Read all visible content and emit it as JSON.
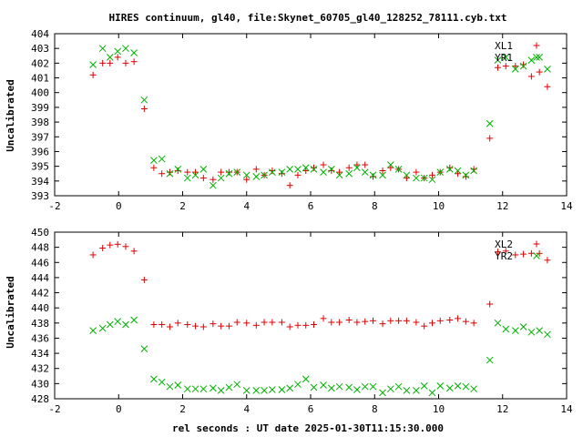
{
  "title": "HIRES continuum, gl40, file:Skynet_60705_gl40_128252_78111.cyb.txt",
  "xlabel": "rel seconds : UT date 2025-01-30T11:15:30.000",
  "colors": {
    "series1": "#e00000",
    "series2": "#00b000"
  },
  "chart_data": [
    {
      "type": "scatter",
      "ylabel": "Uncalibrated",
      "xlim": [
        -2,
        14
      ],
      "ylim": [
        393,
        404
      ],
      "xticks": [
        -2,
        0,
        2,
        4,
        6,
        8,
        10,
        12,
        14
      ],
      "yticks": [
        393,
        394,
        395,
        396,
        397,
        398,
        399,
        400,
        401,
        402,
        403,
        404
      ],
      "legend": "top-right",
      "x": [
        -0.8,
        -0.5,
        -0.27,
        -0.03,
        0.22,
        0.48,
        0.8,
        1.1,
        1.35,
        1.6,
        1.85,
        2.15,
        2.4,
        2.65,
        2.95,
        3.2,
        3.45,
        3.7,
        4.0,
        4.3,
        4.55,
        4.8,
        5.1,
        5.35,
        5.6,
        5.85,
        6.1,
        6.4,
        6.65,
        6.9,
        7.2,
        7.45,
        7.7,
        7.95,
        8.25,
        8.5,
        8.75,
        9.0,
        9.3,
        9.55,
        9.8,
        10.05,
        10.35,
        10.6,
        10.85,
        11.1,
        11.6,
        11.85,
        12.1,
        12.4,
        12.65,
        12.9,
        13.15,
        13.4
      ],
      "series": [
        {
          "name": "XL1",
          "marker": "plus",
          "values": [
            401.2,
            402.0,
            402.0,
            402.4,
            402.0,
            402.1,
            398.9,
            394.9,
            394.5,
            394.6,
            394.7,
            394.6,
            394.6,
            394.2,
            394.1,
            394.6,
            394.6,
            394.6,
            394.1,
            394.8,
            394.4,
            394.7,
            394.5,
            393.7,
            394.4,
            394.7,
            394.9,
            395.1,
            394.7,
            394.6,
            394.9,
            395.1,
            395.1,
            394.3,
            394.7,
            394.9,
            394.8,
            394.2,
            394.6,
            394.2,
            394.4,
            394.6,
            394.9,
            394.5,
            394.3,
            394.8,
            396.9,
            401.7,
            401.8,
            401.8,
            401.9,
            401.1,
            401.4,
            400.4
          ]
        },
        {
          "name": "YR1",
          "marker": "cross",
          "values": [
            401.9,
            403.0,
            402.4,
            402.8,
            403.0,
            402.7,
            399.5,
            395.4,
            395.5,
            394.5,
            394.8,
            394.2,
            394.4,
            394.8,
            393.7,
            394.2,
            394.5,
            394.6,
            394.4,
            394.3,
            394.4,
            394.6,
            394.6,
            394.8,
            394.8,
            394.9,
            394.8,
            394.6,
            394.8,
            394.4,
            394.5,
            394.9,
            394.6,
            394.4,
            394.4,
            395.1,
            394.8,
            394.4,
            394.2,
            394.2,
            394.1,
            394.6,
            394.8,
            394.7,
            394.4,
            394.7,
            397.9,
            402.2,
            402.4,
            401.6,
            401.8,
            402.2,
            402.4,
            401.6
          ]
        }
      ]
    },
    {
      "type": "scatter",
      "ylabel": "Uncalibrated",
      "xlim": [
        -2,
        14
      ],
      "ylim": [
        428,
        450
      ],
      "xticks": [
        -2,
        0,
        2,
        4,
        6,
        8,
        10,
        12,
        14
      ],
      "yticks": [
        428,
        430,
        432,
        434,
        436,
        438,
        440,
        442,
        444,
        446,
        448,
        450
      ],
      "legend": "top-right",
      "x": [
        -0.8,
        -0.5,
        -0.27,
        -0.03,
        0.22,
        0.48,
        0.8,
        1.1,
        1.35,
        1.6,
        1.85,
        2.15,
        2.4,
        2.65,
        2.95,
        3.2,
        3.45,
        3.7,
        4.0,
        4.3,
        4.55,
        4.8,
        5.1,
        5.35,
        5.6,
        5.85,
        6.1,
        6.4,
        6.65,
        6.9,
        7.2,
        7.45,
        7.7,
        7.95,
        8.25,
        8.5,
        8.75,
        9.0,
        9.3,
        9.55,
        9.8,
        10.05,
        10.35,
        10.6,
        10.85,
        11.1,
        11.6,
        11.85,
        12.1,
        12.4,
        12.65,
        12.9,
        13.15,
        13.4
      ],
      "series": [
        {
          "name": "XL2",
          "marker": "plus",
          "values": [
            447.0,
            447.9,
            448.3,
            448.4,
            448.1,
            447.5,
            443.7,
            437.8,
            437.8,
            437.5,
            438.0,
            437.8,
            437.6,
            437.5,
            437.9,
            437.6,
            437.6,
            438.1,
            438.0,
            437.7,
            438.1,
            438.1,
            438.1,
            437.5,
            437.7,
            437.7,
            437.8,
            438.6,
            438.1,
            438.1,
            438.4,
            438.1,
            438.2,
            438.3,
            437.9,
            438.3,
            438.3,
            438.3,
            438.1,
            437.6,
            438.0,
            438.3,
            438.4,
            438.6,
            438.2,
            438.0,
            440.5,
            447.4,
            447.5,
            447.0,
            447.1,
            447.2,
            447.2,
            446.3
          ]
        },
        {
          "name": "YR2",
          "marker": "cross",
          "values": [
            437.0,
            437.3,
            437.8,
            438.2,
            437.8,
            438.4,
            434.6,
            430.6,
            430.2,
            429.6,
            429.8,
            429.3,
            429.3,
            429.3,
            429.4,
            429.1,
            429.5,
            429.9,
            429.1,
            429.1,
            429.1,
            429.2,
            429.2,
            429.4,
            429.9,
            430.6,
            429.5,
            429.8,
            429.4,
            429.6,
            429.5,
            429.2,
            429.6,
            429.6,
            428.8,
            429.3,
            429.6,
            429.1,
            429.1,
            429.7,
            428.8,
            429.7,
            429.4,
            429.7,
            429.6,
            429.3,
            433.1,
            438.0,
            437.2,
            437.0,
            437.5,
            436.8,
            437.0,
            436.5
          ]
        }
      ]
    }
  ]
}
